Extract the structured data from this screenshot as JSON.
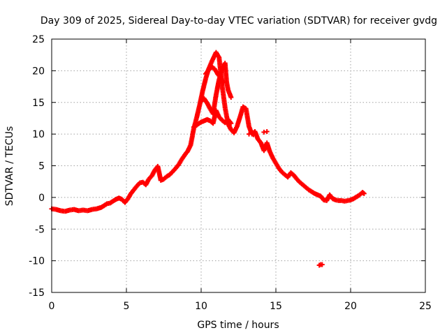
{
  "chart_data": {
    "type": "scatter",
    "title": "Day 309 of 2025, Sidereal Day-to-day VTEC variation (SDTVAR) for receiver gvdg",
    "xlabel": "GPS time / hours",
    "ylabel": "SDTVAR / TECUs",
    "xlim": [
      0,
      25
    ],
    "ylim": [
      -15,
      25
    ],
    "x_ticks": [
      "0",
      "5",
      "10",
      "15",
      "20",
      "25"
    ],
    "y_ticks": [
      "-15",
      "-10",
      "-5",
      "0",
      "5",
      "10",
      "15",
      "20",
      "25"
    ],
    "x_tick_values": [
      0,
      5,
      10,
      15,
      20,
      25
    ],
    "y_tick_values": [
      -15,
      -10,
      -5,
      0,
      5,
      10,
      15,
      20,
      25
    ],
    "grid": true,
    "marker": "plus",
    "color": "#ff0000",
    "series": [
      {
        "name": "sdtvar-main",
        "points": [
          [
            0.0,
            -1.8
          ],
          [
            0.3,
            -1.9
          ],
          [
            0.6,
            -2.1
          ],
          [
            0.9,
            -2.2
          ],
          [
            1.2,
            -2.0
          ],
          [
            1.5,
            -1.9
          ],
          [
            1.8,
            -2.1
          ],
          [
            2.1,
            -2.0
          ],
          [
            2.4,
            -2.1
          ],
          [
            2.7,
            -1.9
          ],
          [
            3.0,
            -1.8
          ],
          [
            3.3,
            -1.6
          ],
          [
            3.5,
            -1.3
          ],
          [
            3.7,
            -1.0
          ],
          [
            3.9,
            -0.9
          ],
          [
            4.1,
            -0.6
          ],
          [
            4.3,
            -0.3
          ],
          [
            4.5,
            -0.1
          ],
          [
            4.7,
            -0.3
          ],
          [
            4.9,
            -0.8
          ],
          [
            5.1,
            -0.2
          ],
          [
            5.3,
            0.6
          ],
          [
            5.5,
            1.2
          ],
          [
            5.7,
            1.8
          ],
          [
            5.9,
            2.3
          ],
          [
            6.1,
            2.4
          ],
          [
            6.3,
            2.0
          ],
          [
            6.5,
            2.9
          ],
          [
            6.7,
            3.4
          ],
          [
            6.9,
            4.3
          ],
          [
            7.1,
            4.9
          ],
          [
            7.3,
            2.7
          ],
          [
            7.5,
            2.9
          ],
          [
            7.7,
            3.3
          ],
          [
            7.9,
            3.6
          ],
          [
            8.1,
            4.1
          ],
          [
            8.3,
            4.6
          ],
          [
            8.5,
            5.2
          ],
          [
            8.7,
            6.0
          ],
          [
            8.9,
            6.7
          ],
          [
            9.1,
            7.3
          ],
          [
            9.3,
            8.3
          ],
          [
            9.5,
            10.8
          ],
          [
            9.7,
            12.6
          ],
          [
            9.9,
            14.6
          ],
          [
            10.1,
            16.8
          ],
          [
            10.3,
            18.7
          ],
          [
            10.5,
            20.3
          ],
          [
            10.7,
            21.4
          ],
          [
            10.9,
            22.4
          ],
          [
            11.0,
            22.9
          ],
          [
            11.2,
            22.1
          ],
          [
            11.4,
            17.7
          ],
          [
            11.6,
            14.2
          ],
          [
            11.8,
            11.6
          ],
          [
            12.0,
            10.7
          ],
          [
            12.2,
            10.2
          ],
          [
            12.4,
            11.2
          ],
          [
            12.6,
            12.7
          ],
          [
            12.8,
            14.3
          ],
          [
            13.0,
            14.0
          ],
          [
            13.2,
            11.2
          ],
          [
            13.4,
            10.0
          ],
          [
            13.6,
            10.4
          ],
          [
            13.8,
            9.2
          ],
          [
            14.0,
            8.6
          ],
          [
            14.2,
            7.4
          ],
          [
            14.4,
            8.6
          ],
          [
            14.6,
            7.2
          ],
          [
            14.8,
            6.2
          ],
          [
            15.0,
            5.4
          ],
          [
            15.2,
            4.6
          ],
          [
            15.4,
            4.0
          ],
          [
            15.6,
            3.6
          ],
          [
            15.8,
            3.2
          ],
          [
            16.0,
            3.9
          ],
          [
            16.2,
            3.5
          ],
          [
            16.4,
            2.9
          ],
          [
            16.6,
            2.4
          ],
          [
            16.8,
            2.0
          ],
          [
            17.0,
            1.6
          ],
          [
            17.2,
            1.2
          ],
          [
            17.4,
            0.9
          ],
          [
            17.6,
            0.6
          ],
          [
            17.8,
            0.4
          ],
          [
            18.0,
            0.2
          ],
          [
            18.2,
            -0.4
          ],
          [
            18.4,
            -0.5
          ],
          [
            18.6,
            0.4
          ],
          [
            18.8,
            -0.2
          ],
          [
            19.0,
            -0.4
          ],
          [
            19.2,
            -0.5
          ],
          [
            19.4,
            -0.5
          ],
          [
            19.6,
            -0.6
          ],
          [
            20.0,
            -0.4
          ],
          [
            20.2,
            -0.2
          ],
          [
            20.4,
            0.1
          ],
          [
            20.6,
            0.4
          ],
          [
            20.8,
            0.8
          ],
          [
            20.9,
            0.6
          ]
        ]
      },
      {
        "name": "sdtvar-branch-mid",
        "points": [
          [
            9.6,
            11.3
          ],
          [
            9.8,
            11.6
          ],
          [
            10.0,
            11.9
          ],
          [
            10.2,
            12.1
          ],
          [
            10.4,
            12.3
          ],
          [
            10.6,
            12.1
          ],
          [
            10.8,
            11.7
          ],
          [
            11.0,
            13.7
          ],
          [
            11.2,
            12.7
          ],
          [
            11.4,
            12.2
          ],
          [
            11.6,
            11.8
          ],
          [
            11.8,
            12.3
          ],
          [
            12.0,
            11.7
          ]
        ]
      },
      {
        "name": "sdtvar-branch-high",
        "points": [
          [
            10.0,
            15.2
          ],
          [
            10.2,
            15.6
          ],
          [
            10.4,
            14.9
          ],
          [
            10.6,
            14.0
          ],
          [
            10.8,
            13.2
          ],
          [
            11.0,
            16.2
          ],
          [
            11.2,
            18.6
          ],
          [
            11.4,
            20.2
          ],
          [
            11.6,
            21.2
          ],
          [
            11.7,
            18.3
          ],
          [
            11.8,
            17.0
          ],
          [
            11.9,
            16.4
          ],
          [
            12.0,
            15.8
          ]
        ]
      },
      {
        "name": "sdtvar-branch-upper",
        "points": [
          [
            10.3,
            19.5
          ],
          [
            10.5,
            20.1
          ],
          [
            10.7,
            20.6
          ],
          [
            10.9,
            20.3
          ],
          [
            11.1,
            19.5
          ],
          [
            11.3,
            18.9
          ],
          [
            11.5,
            18.1
          ]
        ]
      },
      {
        "name": "sdtvar-outliers",
        "points": [
          [
            9.5,
            11.1
          ],
          [
            9.7,
            11.4
          ],
          [
            13.2,
            10.0
          ],
          [
            13.5,
            9.9
          ],
          [
            14.2,
            10.3
          ],
          [
            14.4,
            10.4
          ],
          [
            17.9,
            -10.7
          ],
          [
            18.0,
            -10.6
          ],
          [
            18.1,
            -10.6
          ]
        ]
      }
    ]
  }
}
